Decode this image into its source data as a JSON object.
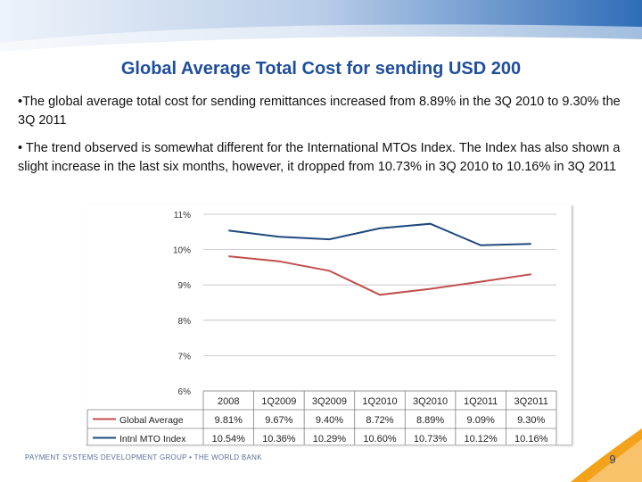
{
  "slide": {
    "title": "Global Average Total Cost for sending USD 200",
    "bullets": [
      "•The global average total cost for sending remittances increased from 8.89% in the 3Q 2010 to 9.30% the 3Q 2011",
      "• The trend observed is somewhat different for the International MTOs Index. The Index has also shown a slight increase in the last six months, however, it dropped from 10.73% in 3Q 2010 to 10.16% in 3Q 2011"
    ],
    "footer": "PAYMENT SYSTEMS DEVELOPMENT GROUP • THE WORLD BANK",
    "page_number": "9"
  },
  "colors": {
    "title": "#1f4e9c",
    "global_average": "#c0504d",
    "intl_mto_index": "#1f497d"
  },
  "chart_data": {
    "type": "line",
    "categories": [
      "2008",
      "1Q2009",
      "3Q2009",
      "1Q2010",
      "3Q2010",
      "1Q2011",
      "3Q2011"
    ],
    "y_ticks": [
      "6%",
      "7%",
      "8%",
      "9%",
      "10%",
      "11%"
    ],
    "ylim": [
      6,
      11
    ],
    "grid": true,
    "legend": "table-below",
    "series": [
      {
        "name": "Global Average",
        "values": [
          9.81,
          9.67,
          9.4,
          8.72,
          8.89,
          9.09,
          9.3
        ],
        "labels": [
          "9.81%",
          "9.67%",
          "9.40%",
          "8.72%",
          "8.89%",
          "9.09%",
          "9.30%"
        ]
      },
      {
        "name": "Intnl MTO Index",
        "values": [
          10.54,
          10.36,
          10.29,
          10.6,
          10.73,
          10.12,
          10.16
        ],
        "labels": [
          "10.54%",
          "10.36%",
          "10.29%",
          "10.60%",
          "10.73%",
          "10.12%",
          "10.16%"
        ]
      }
    ]
  }
}
